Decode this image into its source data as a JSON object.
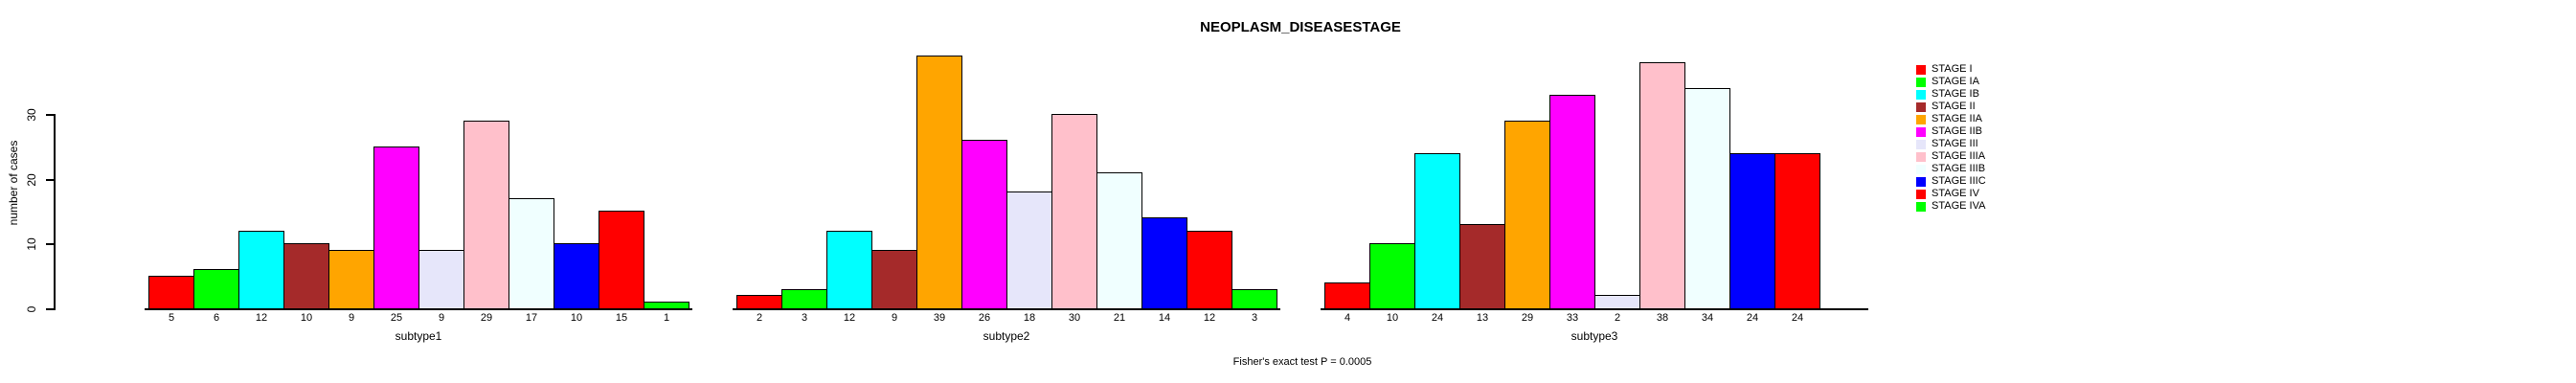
{
  "title": "NEOPLASM_DISEASESTAGE",
  "annotation": "Fisher's exact test P = 0.0005",
  "y_axis": {
    "label": "number of cases",
    "ticks": [
      0,
      10,
      20,
      30
    ]
  },
  "legend": {
    "position": "right",
    "items": [
      {
        "label": "STAGE I",
        "color": "#FF0000"
      },
      {
        "label": "STAGE IA",
        "color": "#00FF00"
      },
      {
        "label": "STAGE IB",
        "color": "#00FFFF"
      },
      {
        "label": "STAGE II",
        "color": "#A52A2A"
      },
      {
        "label": "STAGE IIA",
        "color": "#FFA500"
      },
      {
        "label": "STAGE IIB",
        "color": "#FF00FF"
      },
      {
        "label": "STAGE III",
        "color": "#E6E6FA"
      },
      {
        "label": "STAGE IIIA",
        "color": "#FFC0CB"
      },
      {
        "label": "STAGE IIIB",
        "color": "#F0FFFF"
      },
      {
        "label": "STAGE IIIC",
        "color": "#0000FF"
      },
      {
        "label": "STAGE IV",
        "color": "#FF0000"
      },
      {
        "label": "STAGE IVA",
        "color": "#00FF00"
      }
    ]
  },
  "chart_data": {
    "type": "bar",
    "title": "NEOPLASM_DISEASESTAGE",
    "ylabel": "number of cases",
    "yticks": [
      0,
      10,
      20,
      30
    ],
    "ylim": [
      0,
      40
    ],
    "grid": false,
    "legend_position": "right",
    "bar_value_labels": "value shown under each bar",
    "categories": [
      "STAGE I",
      "STAGE IA",
      "STAGE IB",
      "STAGE II",
      "STAGE IIA",
      "STAGE IIB",
      "STAGE III",
      "STAGE IIIA",
      "STAGE IIIB",
      "STAGE IIIC",
      "STAGE IV",
      "STAGE IVA"
    ],
    "colors": [
      "#FF0000",
      "#00FF00",
      "#00FFFF",
      "#A52A2A",
      "#FFA500",
      "#FF00FF",
      "#E6E6FA",
      "#FFC0CB",
      "#F0FFFF",
      "#0000FF",
      "#FF0000",
      "#00FF00"
    ],
    "series": [
      {
        "name": "subtype1",
        "values": [
          5,
          6,
          12,
          10,
          9,
          25,
          9,
          29,
          17,
          10,
          15,
          1
        ]
      },
      {
        "name": "subtype2",
        "values": [
          2,
          3,
          12,
          9,
          39,
          26,
          18,
          30,
          21,
          14,
          12,
          3
        ]
      },
      {
        "name": "subtype3",
        "values": [
          4,
          10,
          24,
          13,
          29,
          33,
          2,
          38,
          34,
          24,
          24,
          null
        ]
      }
    ],
    "annotation": "Fisher's exact test P = 0.0005"
  }
}
